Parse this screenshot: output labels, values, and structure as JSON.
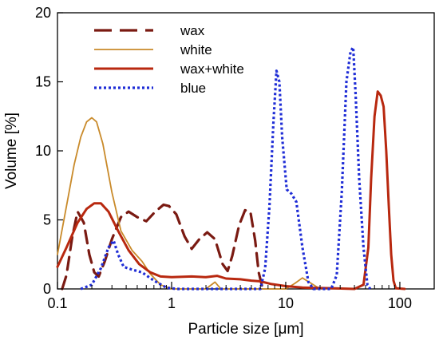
{
  "chart_data": {
    "type": "line",
    "title": "",
    "xlabel": "Particle size [μm]",
    "ylabel": "Volume [%]",
    "xscale": "log",
    "xlim": [
      0.1,
      200
    ],
    "ylim": [
      0,
      20
    ],
    "xticks": [
      {
        "value": 0.1,
        "label": "0.1"
      },
      {
        "value": 1,
        "label": "1"
      },
      {
        "value": 10,
        "label": "10"
      },
      {
        "value": 100,
        "label": "100"
      }
    ],
    "yticks": [
      {
        "value": 0,
        "label": "0"
      },
      {
        "value": 5,
        "label": "5"
      },
      {
        "value": 10,
        "label": "10"
      },
      {
        "value": 15,
        "label": "15"
      },
      {
        "value": 20,
        "label": "20"
      }
    ],
    "grid": false,
    "legend_position": "top-left",
    "series": [
      {
        "name": "wax",
        "color": "#7a1a12",
        "style": "dashed",
        "points": [
          [
            0.11,
            0.0
          ],
          [
            0.12,
            1.0
          ],
          [
            0.135,
            3.8
          ],
          [
            0.15,
            5.6
          ],
          [
            0.17,
            4.8
          ],
          [
            0.19,
            2.5
          ],
          [
            0.21,
            1.2
          ],
          [
            0.23,
            0.9
          ],
          [
            0.26,
            2.0
          ],
          [
            0.3,
            3.6
          ],
          [
            0.36,
            5.2
          ],
          [
            0.42,
            5.6
          ],
          [
            0.5,
            5.2
          ],
          [
            0.6,
            4.9
          ],
          [
            0.72,
            5.6
          ],
          [
            0.85,
            6.1
          ],
          [
            0.95,
            6.0
          ],
          [
            1.1,
            5.4
          ],
          [
            1.3,
            3.8
          ],
          [
            1.5,
            2.9
          ],
          [
            1.75,
            3.6
          ],
          [
            2.05,
            4.1
          ],
          [
            2.4,
            3.6
          ],
          [
            2.8,
            1.8
          ],
          [
            3.1,
            1.3
          ],
          [
            3.4,
            2.4
          ],
          [
            3.9,
            4.6
          ],
          [
            4.4,
            5.7
          ],
          [
            4.9,
            5.6
          ],
          [
            5.4,
            3.5
          ],
          [
            5.8,
            1.2
          ],
          [
            6.2,
            0.2
          ],
          [
            6.6,
            0.0
          ]
        ]
      },
      {
        "name": "white",
        "color": "#c98a2a",
        "style": "solid",
        "points": [
          [
            0.1,
            2.5
          ],
          [
            0.12,
            6.0
          ],
          [
            0.14,
            9.0
          ],
          [
            0.16,
            11.0
          ],
          [
            0.18,
            12.1
          ],
          [
            0.2,
            12.4
          ],
          [
            0.22,
            12.1
          ],
          [
            0.25,
            10.5
          ],
          [
            0.3,
            7.0
          ],
          [
            0.36,
            4.2
          ],
          [
            0.45,
            2.8
          ],
          [
            0.55,
            2.0
          ],
          [
            0.65,
            1.1
          ],
          [
            0.8,
            0.3
          ],
          [
            1.0,
            0.0
          ],
          [
            2.0,
            0.0
          ],
          [
            2.4,
            0.5
          ],
          [
            2.7,
            0.0
          ],
          [
            10,
            0.0
          ],
          [
            12,
            0.4
          ],
          [
            14,
            0.8
          ],
          [
            16,
            0.5
          ],
          [
            20,
            0.0
          ]
        ]
      },
      {
        "name": "wax+white",
        "color": "#b8280f",
        "style": "solid",
        "points": [
          [
            0.1,
            1.6
          ],
          [
            0.12,
            3.0
          ],
          [
            0.15,
            4.8
          ],
          [
            0.18,
            5.8
          ],
          [
            0.21,
            6.2
          ],
          [
            0.24,
            6.2
          ],
          [
            0.28,
            5.6
          ],
          [
            0.34,
            4.2
          ],
          [
            0.42,
            2.8
          ],
          [
            0.52,
            1.8
          ],
          [
            0.65,
            1.2
          ],
          [
            0.8,
            0.9
          ],
          [
            1.0,
            0.85
          ],
          [
            1.5,
            0.9
          ],
          [
            2.0,
            0.85
          ],
          [
            2.5,
            0.95
          ],
          [
            3.0,
            0.75
          ],
          [
            4.0,
            0.7
          ],
          [
            5.0,
            0.6
          ],
          [
            6.0,
            0.55
          ],
          [
            7.5,
            0.35
          ],
          [
            10,
            0.2
          ],
          [
            14,
            0.1
          ],
          [
            25,
            0.05
          ],
          [
            40,
            0.0
          ],
          [
            48,
            0.3
          ],
          [
            53,
            3.0
          ],
          [
            56,
            8.0
          ],
          [
            60,
            12.5
          ],
          [
            64,
            14.3
          ],
          [
            68,
            14.0
          ],
          [
            72,
            13.2
          ],
          [
            76,
            10.0
          ],
          [
            80,
            6.0
          ],
          [
            84,
            2.5
          ],
          [
            88,
            0.6
          ],
          [
            92,
            0.05
          ],
          [
            110,
            0.0
          ]
        ]
      },
      {
        "name": "blue",
        "color": "#1f2dd6",
        "style": "dotted",
        "points": [
          [
            0.16,
            0.0
          ],
          [
            0.2,
            0.3
          ],
          [
            0.24,
            1.5
          ],
          [
            0.28,
            3.0
          ],
          [
            0.31,
            3.5
          ],
          [
            0.34,
            2.5
          ],
          [
            0.38,
            1.6
          ],
          [
            0.45,
            1.4
          ],
          [
            0.55,
            1.2
          ],
          [
            0.7,
            0.6
          ],
          [
            0.9,
            0.1
          ],
          [
            1.1,
            0.0
          ],
          [
            6.0,
            0.0
          ],
          [
            6.6,
            1.5
          ],
          [
            7.2,
            6.0
          ],
          [
            7.8,
            12.0
          ],
          [
            8.3,
            15.8
          ],
          [
            8.8,
            15.0
          ],
          [
            9.3,
            11.0
          ],
          [
            10.2,
            7.2
          ],
          [
            11.2,
            6.9
          ],
          [
            12.4,
            6.3
          ],
          [
            14.0,
            3.0
          ],
          [
            15.8,
            0.5
          ],
          [
            17.5,
            0.0
          ],
          [
            25,
            0.0
          ],
          [
            28,
            1.0
          ],
          [
            31,
            7.0
          ],
          [
            34,
            15.0
          ],
          [
            37,
            17.2
          ],
          [
            39,
            17.5
          ],
          [
            41,
            14.0
          ],
          [
            44,
            8.0
          ],
          [
            48,
            3.0
          ],
          [
            52,
            0.3
          ],
          [
            55,
            0.0
          ]
        ]
      }
    ]
  }
}
